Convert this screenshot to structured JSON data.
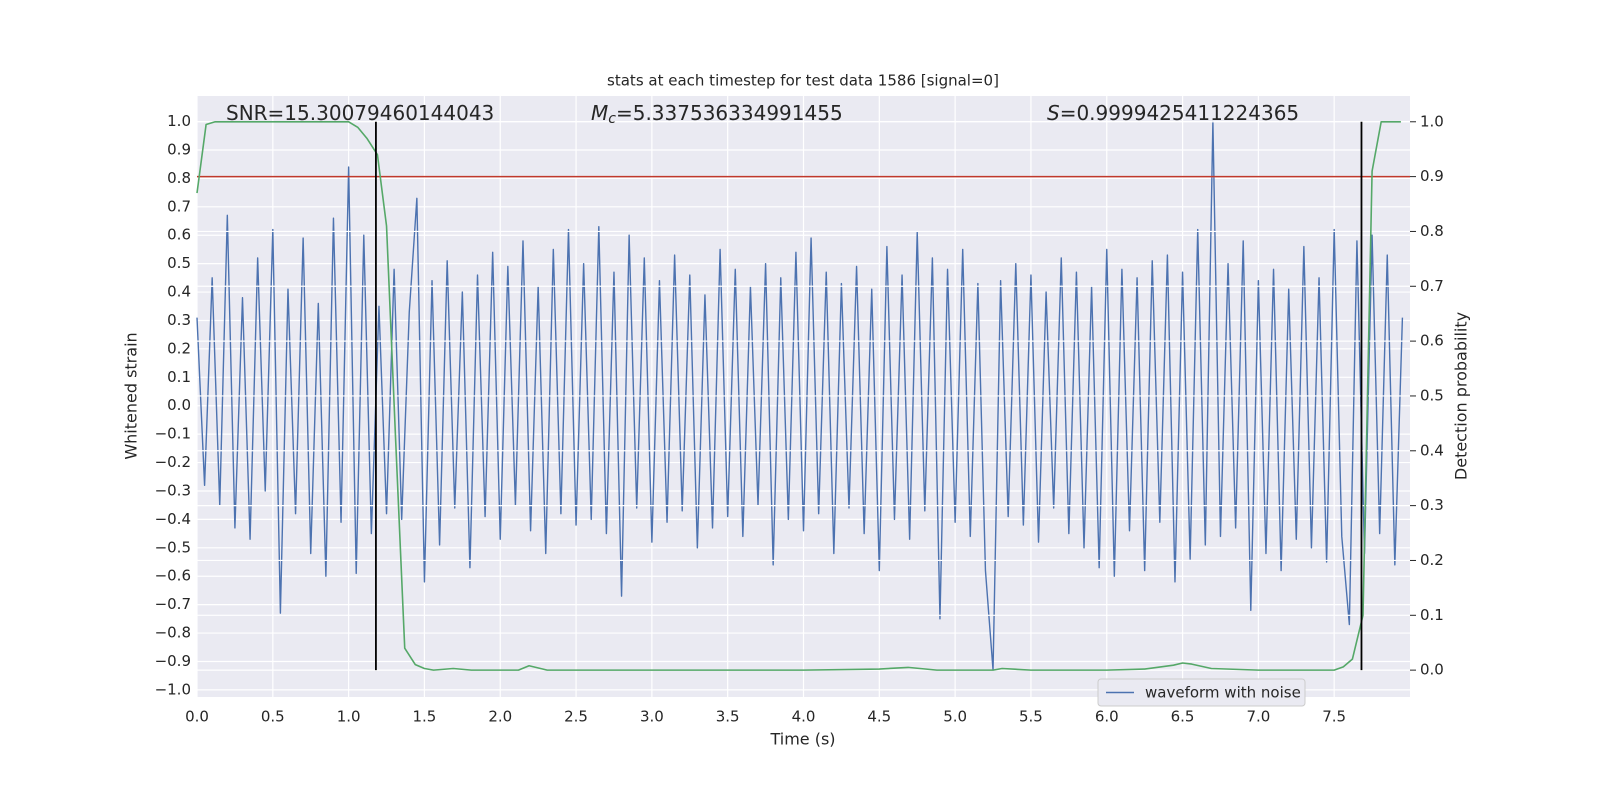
{
  "chart_data": {
    "type": "line",
    "title": "stats at each timestep for test data 1586 [signal=0]",
    "x_label": "Time (s)",
    "y_label": "Whitened strain",
    "y2_label": "Detection probability",
    "annotations": [
      {
        "text": "SNR=15.30079460144043"
      },
      {
        "symbol": "M",
        "subscript": "c",
        "text": "=5.337536334991455"
      },
      {
        "symbol": "S",
        "text": "=0.9999425411224365"
      }
    ],
    "xlim": [
      0,
      8
    ],
    "ylim": [
      -1.025,
      1.09
    ],
    "y2lim": [
      -0.049,
      1.047
    ],
    "xticks": [
      {
        "value": 0,
        "label": "0.0"
      },
      0.5,
      {
        "value": 1,
        "label": "1.0"
      },
      1.5,
      {
        "value": 2,
        "label": "2.0"
      },
      2.5,
      {
        "value": 3,
        "label": "3.0"
      },
      3.5,
      {
        "value": 4,
        "label": "4.0"
      },
      4.5,
      {
        "value": 5,
        "label": "5.0"
      },
      5.5,
      {
        "value": 6,
        "label": "6.0"
      },
      6.5,
      {
        "value": 7,
        "label": "7.0"
      },
      7.5
    ],
    "yticks": [
      {
        "value": 1,
        "label": "1.0"
      },
      0.9,
      0.8,
      0.7,
      0.6,
      0.5,
      0.4,
      0.3,
      0.2,
      0.1,
      {
        "value": 0,
        "label": "0.0"
      },
      {
        "value": -0.1,
        "label": "−0.1"
      },
      {
        "value": -0.2,
        "label": "−0.2"
      },
      {
        "value": -0.3,
        "label": "−0.3"
      },
      {
        "value": -0.4,
        "label": "−0.4"
      },
      {
        "value": -0.5,
        "label": "−0.5"
      },
      {
        "value": -0.6,
        "label": "−0.6"
      },
      {
        "value": -0.7,
        "label": "−0.7"
      },
      {
        "value": -0.8,
        "label": "−0.8"
      },
      {
        "value": -0.9,
        "label": "−0.9"
      },
      {
        "value": -1,
        "label": "−1.0"
      }
    ],
    "y2ticks": [
      {
        "value": 0,
        "label": "0.0"
      },
      0.1,
      0.2,
      0.3,
      0.4,
      0.5,
      0.6,
      0.7,
      0.8,
      0.9,
      {
        "value": 1,
        "label": "1.0"
      }
    ],
    "grid": true,
    "legend": "lower right",
    "series": [
      {
        "name": "waveform with noise",
        "color": "#4c72b0",
        "x": [
          0,
          0.05,
          0.1,
          0.15,
          0.2,
          0.25,
          0.3,
          0.35,
          0.4,
          0.45,
          0.5,
          0.55,
          0.6,
          0.65,
          0.7,
          0.75,
          0.8,
          0.85,
          0.9,
          0.95,
          1,
          1.05,
          1.1,
          1.15,
          1.2,
          1.25,
          1.3,
          1.35,
          1.4,
          1.45,
          1.5,
          1.55,
          1.6,
          1.65,
          1.7,
          1.75,
          1.8,
          1.85,
          1.9,
          1.95,
          2,
          2.05,
          2.1,
          2.15,
          2.2,
          2.25,
          2.3,
          2.35,
          2.4,
          2.45,
          2.5,
          2.55,
          2.6,
          2.65,
          2.7,
          2.75,
          2.8,
          2.85,
          2.9,
          2.95,
          3,
          3.05,
          3.1,
          3.15,
          3.2,
          3.25,
          3.3,
          3.35,
          3.4,
          3.45,
          3.5,
          3.55,
          3.6,
          3.65,
          3.7,
          3.75,
          3.8,
          3.85,
          3.9,
          3.95,
          4,
          4.05,
          4.1,
          4.15,
          4.2,
          4.25,
          4.3,
          4.35,
          4.4,
          4.45,
          4.5,
          4.55,
          4.6,
          4.65,
          4.7,
          4.75,
          4.8,
          4.85,
          4.9,
          4.95,
          5,
          5.05,
          5.1,
          5.15,
          5.2,
          5.25,
          5.3,
          5.35,
          5.4,
          5.45,
          5.5,
          5.55,
          5.6,
          5.65,
          5.7,
          5.75,
          5.8,
          5.85,
          5.9,
          5.95,
          6,
          6.05,
          6.1,
          6.15,
          6.2,
          6.25,
          6.3,
          6.35,
          6.4,
          6.45,
          6.5,
          6.55,
          6.6,
          6.65,
          6.7,
          6.75,
          6.8,
          6.85,
          6.9,
          6.95,
          7,
          7.05,
          7.1,
          7.15,
          7.2,
          7.25,
          7.3,
          7.35,
          7.4,
          7.45,
          7.5,
          7.55,
          7.6,
          7.65,
          7.7,
          7.75,
          7.8,
          7.85,
          7.9,
          7.95
        ],
        "values": [
          0.31,
          -0.28,
          0.45,
          -0.35,
          0.67,
          -0.43,
          0.38,
          -0.47,
          0.52,
          -0.3,
          0.62,
          -0.73,
          0.41,
          -0.38,
          0.59,
          -0.52,
          0.36,
          -0.6,
          0.66,
          -0.41,
          0.84,
          -0.59,
          0.6,
          -0.45,
          0.35,
          -0.38,
          0.48,
          -0.4,
          0.33,
          0.73,
          -0.62,
          0.44,
          -0.49,
          0.51,
          -0.36,
          0.4,
          -0.57,
          0.46,
          -0.39,
          0.54,
          -0.47,
          0.49,
          -0.35,
          0.58,
          -0.44,
          0.42,
          -0.52,
          0.55,
          -0.38,
          0.62,
          -0.42,
          0.5,
          -0.4,
          0.63,
          -0.45,
          0.47,
          -0.67,
          0.6,
          -0.36,
          0.52,
          -0.48,
          0.44,
          -0.41,
          0.53,
          -0.37,
          0.46,
          -0.5,
          0.39,
          -0.43,
          0.55,
          -0.39,
          0.48,
          -0.46,
          0.42,
          -0.35,
          0.5,
          -0.56,
          0.45,
          -0.4,
          0.54,
          -0.44,
          0.59,
          -0.38,
          0.47,
          -0.52,
          0.43,
          -0.36,
          0.49,
          -0.45,
          0.41,
          -0.58,
          0.56,
          -0.4,
          0.46,
          -0.47,
          0.61,
          -0.37,
          0.52,
          -0.75,
          0.48,
          -0.41,
          0.55,
          -0.46,
          0.43,
          -0.58,
          -0.93,
          0.44,
          -0.39,
          0.5,
          -0.42,
          0.46,
          -0.48,
          0.4,
          -0.36,
          0.52,
          -0.45,
          0.47,
          -0.5,
          0.42,
          -0.57,
          0.55,
          -0.6,
          0.48,
          -0.44,
          0.45,
          -0.58,
          0.51,
          -0.41,
          0.53,
          -0.62,
          0.47,
          -0.54,
          0.62,
          -0.49,
          1.0,
          -0.46,
          0.5,
          -0.43,
          0.58,
          -0.72,
          0.44,
          -0.52,
          0.48,
          -0.58,
          0.41,
          -0.47,
          0.56,
          -0.5,
          0.45,
          -0.55,
          0.62,
          -0.46,
          -0.77,
          0.58,
          -0.52,
          0.6,
          -0.45,
          0.53,
          -0.56,
          0.31
        ]
      },
      {
        "color": "#55a868",
        "axis": "y2",
        "x": [
          0,
          0.06,
          0.12,
          0.25,
          0.5,
          0.75,
          1.0,
          1.06,
          1.12,
          1.19,
          1.25,
          1.31,
          1.37,
          1.44,
          1.5,
          1.56,
          1.69,
          1.81,
          2.0,
          2.12,
          2.19,
          2.31,
          2.5,
          3.0,
          3.5,
          4.0,
          4.5,
          4.69,
          4.88,
          5.0,
          5.25,
          5.31,
          5.5,
          6.0,
          6.25,
          6.44,
          6.5,
          6.56,
          6.69,
          7.0,
          7.5,
          7.56,
          7.62,
          7.69,
          7.75,
          7.81,
          7.88,
          7.94
        ],
        "values": [
          0.87,
          0.995,
          1.0,
          1.0,
          1.0,
          1.0,
          1.0,
          0.99,
          0.97,
          0.94,
          0.81,
          0.42,
          0.04,
          0.01,
          0.003,
          0.0,
          0.003,
          0.0,
          0.0,
          0.0,
          0.008,
          0.0,
          0.0,
          0.0,
          0.0,
          0.0,
          0.002,
          0.005,
          0.0,
          0.0,
          0.0,
          0.003,
          0.0,
          0.0,
          0.002,
          0.009,
          0.013,
          0.011,
          0.003,
          0.0,
          0.0,
          0.006,
          0.02,
          0.1,
          0.91,
          1.0,
          1.0,
          1.0
        ]
      }
    ],
    "threshold": {
      "value": 0.9,
      "axis": "y2",
      "color": "#c0392b"
    },
    "vlines": {
      "x": [
        1.18,
        7.68
      ],
      "span": [
        0,
        1
      ],
      "axis": "y2",
      "color": "#000000"
    }
  }
}
